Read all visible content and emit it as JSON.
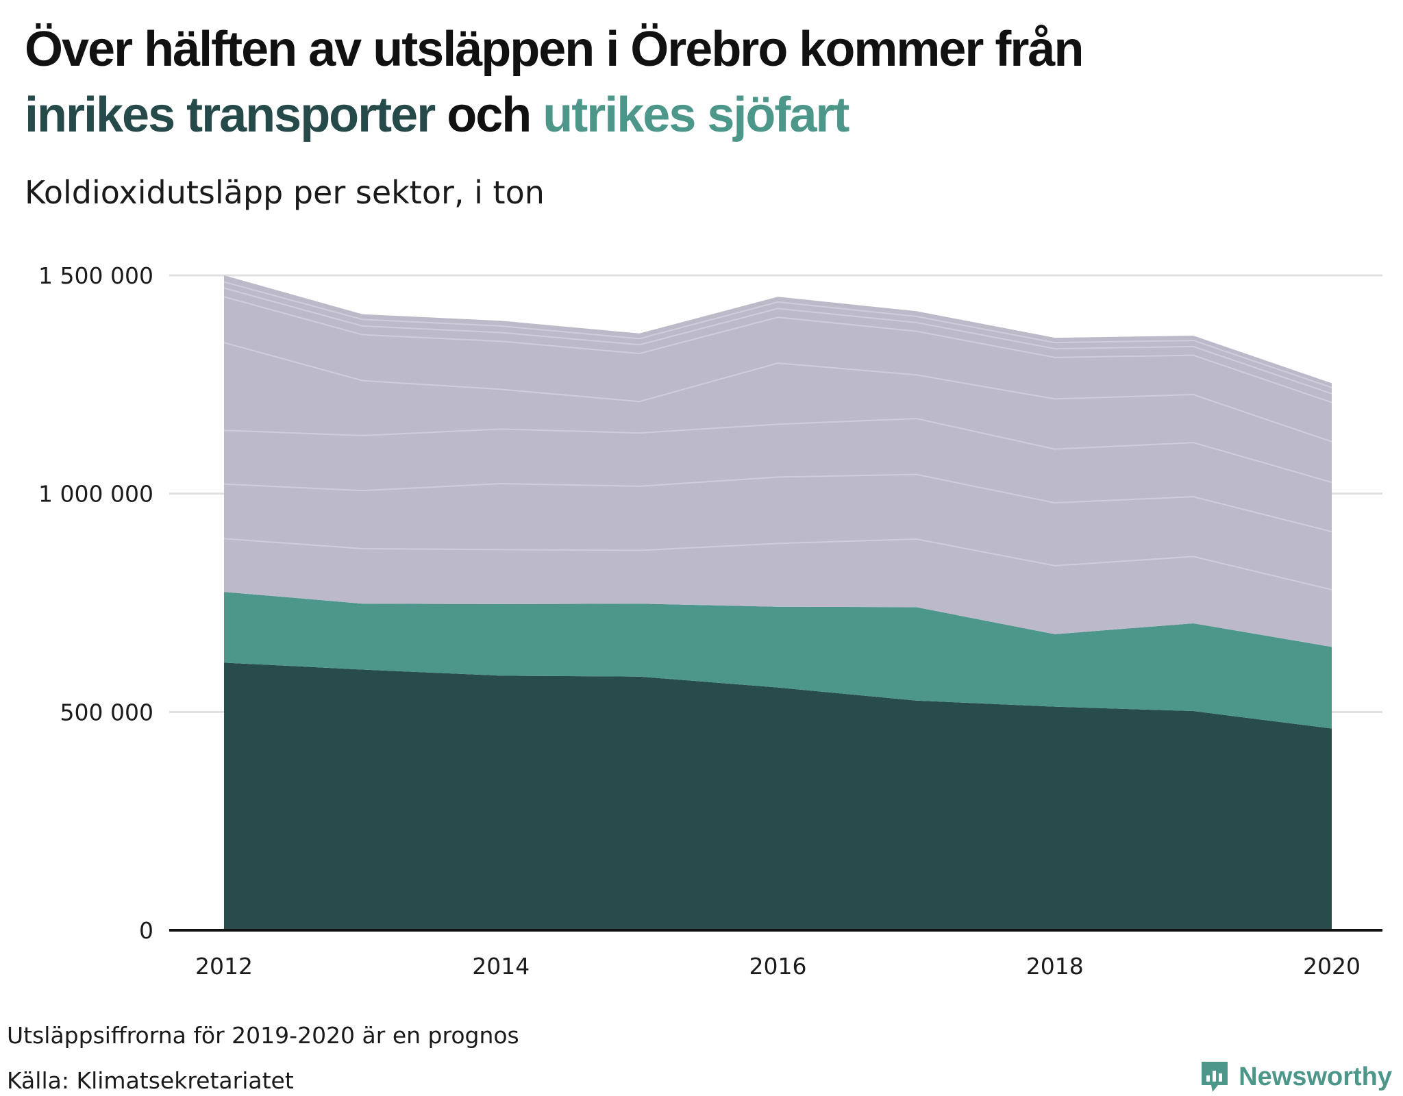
{
  "headline": {
    "line1": "Över hälften av utsläppen i Örebro kommer från",
    "part_dark": "inrikes transporter",
    "part_mid": " och ",
    "part_light": "utrikes sjöfart"
  },
  "subtitle": "Koldioxidutsläpp per sektor, i ton",
  "note": "Utsläppsiffrorna för 2019-2020 är en prognos",
  "source": "Källa: Klimatsekretariatet",
  "brand": "Newsworthy",
  "colors": {
    "inrikes_transporter": "#274c4b",
    "utrikes_sjofart": "#4c978a",
    "other_sectors": "#bcbac8",
    "sector_divider": "#cfcdd9",
    "grid": "#e0e0e0",
    "axis": "#111111"
  },
  "chart_data": {
    "type": "area",
    "stacked": true,
    "x": [
      2012,
      2013,
      2014,
      2015,
      2016,
      2017,
      2018,
      2019,
      2020
    ],
    "x_ticks": [
      "2012",
      "2014",
      "2016",
      "2018",
      "2020"
    ],
    "y_ticks": [
      {
        "value": 0,
        "label": "0"
      },
      {
        "value": 500000,
        "label": "500 000"
      },
      {
        "value": 1000000,
        "label": "1 000 000"
      },
      {
        "value": 1500000,
        "label": "1 500 000"
      }
    ],
    "ylim": [
      0,
      1500000
    ],
    "grid": true,
    "series": [
      {
        "name": "inrikes transporter",
        "color": "#274c4b",
        "values": [
          613000,
          597000,
          583000,
          581000,
          556000,
          526000,
          512000,
          502000,
          462000
        ]
      },
      {
        "name": "utrikes sjöfart",
        "color": "#4c978a",
        "values": [
          162000,
          151000,
          164000,
          167000,
          185000,
          214000,
          166000,
          201000,
          187000
        ]
      },
      {
        "color": "#bcbac8",
        "values": [
          122000,
          126000,
          125000,
          122000,
          145000,
          156000,
          157000,
          153000,
          131000
        ]
      },
      {
        "color": "#bcbac8",
        "values": [
          125000,
          133000,
          151000,
          147000,
          152000,
          148000,
          144000,
          137000,
          133000
        ]
      },
      {
        "color": "#bcbac8",
        "values": [
          123000,
          126000,
          125000,
          122000,
          121000,
          128000,
          123000,
          124000,
          113000
        ]
      },
      {
        "color": "#bcbac8",
        "values": [
          201000,
          126000,
          91000,
          72000,
          140000,
          100000,
          115000,
          110000,
          93000
        ]
      },
      {
        "color": "#bcbac8",
        "values": [
          105000,
          105000,
          110000,
          110000,
          105000,
          100000,
          95000,
          90000,
          90000
        ]
      },
      {
        "color": "#bcbac8",
        "values": [
          20000,
          20000,
          20000,
          20000,
          20000,
          20000,
          20000,
          20000,
          20000
        ]
      },
      {
        "color": "#bcbac8",
        "values": [
          14000,
          15000,
          15000,
          14000,
          15000,
          14000,
          14000,
          14000,
          14000
        ]
      },
      {
        "color": "#bcbac8",
        "values": [
          15000,
          12000,
          12000,
          12000,
          12000,
          12000,
          11000,
          11000,
          10000
        ]
      }
    ]
  }
}
